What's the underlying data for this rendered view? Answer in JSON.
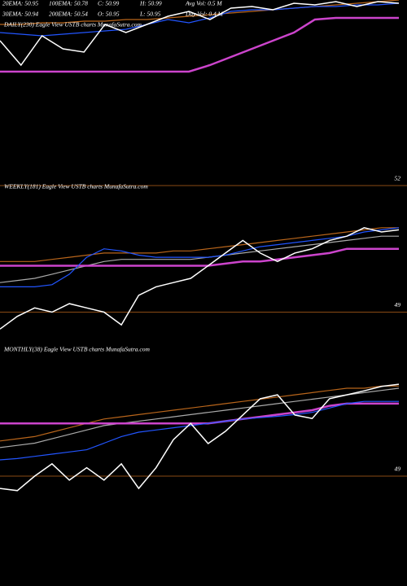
{
  "chart_data": [
    {
      "type": "line",
      "title": "DAILY(230) Eagle  View  USTB charts MunafaSutra.com",
      "annotations": [
        "20EMA: 50.95",
        "100EMA: 50.78",
        "C: 50.99",
        "H: 50.99",
        "Avg Vol: 0.5 M",
        "30EMA: 50.94",
        "200EMA: 50.54",
        "O: 50.95",
        "L: 50.95",
        "Day Vol: 0.4 M"
      ],
      "ylim": [
        50.55,
        51.05
      ],
      "yticks": [],
      "series": [
        {
          "color": "#b8651b",
          "values": [
            50.9,
            50.9,
            50.91,
            50.91,
            50.92,
            50.92,
            50.93,
            50.93,
            50.94,
            50.95,
            50.96,
            50.97,
            50.98,
            50.99,
            51.0,
            51.01,
            51.02,
            51.03,
            51.04,
            51.05
          ]
        },
        {
          "color": "#cc44cc",
          "values": [
            50.61,
            50.61,
            50.61,
            50.61,
            50.61,
            50.61,
            50.61,
            50.61,
            50.61,
            50.61,
            50.65,
            50.7,
            50.75,
            50.8,
            50.85,
            50.93,
            50.94,
            50.94,
            50.94,
            50.94
          ]
        },
        {
          "color": "#2255ff",
          "values": [
            50.85,
            50.84,
            50.83,
            50.84,
            50.85,
            50.86,
            50.87,
            50.9,
            50.93,
            50.91,
            50.94,
            50.98,
            50.99,
            50.99,
            51.0,
            51.01,
            51.01,
            51.02,
            51.02,
            51.03
          ]
        },
        {
          "color": "#ffffff",
          "values": [
            50.8,
            50.65,
            50.83,
            50.75,
            50.73,
            50.9,
            50.85,
            50.9,
            50.95,
            50.98,
            50.93,
            51.0,
            51.01,
            50.99,
            51.03,
            51.02,
            51.04,
            51.01,
            51.04,
            51.03
          ]
        }
      ]
    },
    {
      "type": "line",
      "title": "WEEKLY(181) Eagle  View  USTB charts MunafaSutra.com",
      "ylim": [
        48.2,
        52.25
      ],
      "yticks": [
        49,
        52
      ],
      "series": [
        {
          "color": "#b8651b",
          "values": [
            50.2,
            50.2,
            50.2,
            50.25,
            50.3,
            50.35,
            50.4,
            50.4,
            50.4,
            50.4,
            50.45,
            50.45,
            50.5,
            50.55,
            50.6,
            50.65,
            50.7,
            50.75,
            50.8,
            50.85,
            50.9,
            50.95,
            51.0,
            51.0
          ]
        },
        {
          "color": "#aaaaaa",
          "values": [
            49.7,
            49.75,
            49.8,
            49.9,
            50.0,
            50.1,
            50.2,
            50.25,
            50.25,
            50.25,
            50.25,
            50.25,
            50.3,
            50.35,
            50.4,
            50.45,
            50.5,
            50.55,
            50.6,
            50.65,
            50.7,
            50.75,
            50.8,
            50.8
          ]
        },
        {
          "color": "#cc44cc",
          "values": [
            50.1,
            50.1,
            50.1,
            50.1,
            50.1,
            50.1,
            50.1,
            50.1,
            50.1,
            50.1,
            50.1,
            50.1,
            50.1,
            50.15,
            50.2,
            50.2,
            50.25,
            50.3,
            50.35,
            50.4,
            50.5,
            50.5,
            50.5,
            50.5
          ]
        },
        {
          "color": "#2255ff",
          "values": [
            49.6,
            49.6,
            49.6,
            49.65,
            49.9,
            50.3,
            50.5,
            50.45,
            50.35,
            50.3,
            50.3,
            50.3,
            50.3,
            50.35,
            50.45,
            50.55,
            50.6,
            50.65,
            50.7,
            50.75,
            50.8,
            50.9,
            50.95,
            51.0
          ]
        },
        {
          "color": "#ffffff",
          "values": [
            48.6,
            48.9,
            49.1,
            49.0,
            49.2,
            49.1,
            49.0,
            48.7,
            49.4,
            49.6,
            49.7,
            49.8,
            50.1,
            50.4,
            50.7,
            50.4,
            50.2,
            50.4,
            50.5,
            50.7,
            50.8,
            51.0,
            50.9,
            50.95
          ]
        }
      ]
    },
    {
      "type": "line",
      "title": "MONTHLY(38) Eagle  View  USTB charts MunafaSutra.com",
      "ylim": [
        48.5,
        51.87
      ],
      "yticks": [
        49
      ],
      "series": [
        {
          "color": "#b8651b",
          "values": [
            49.8,
            49.85,
            49.9,
            50.0,
            50.1,
            50.2,
            50.3,
            50.35,
            50.4,
            50.45,
            50.5,
            50.55,
            50.6,
            50.65,
            50.7,
            50.75,
            50.8,
            50.85,
            50.9,
            50.95,
            51.0,
            51.0,
            51.05,
            51.05
          ]
        },
        {
          "color": "#aaaaaa",
          "values": [
            49.65,
            49.7,
            49.75,
            49.85,
            49.95,
            50.05,
            50.15,
            50.2,
            50.25,
            50.3,
            50.35,
            50.4,
            50.45,
            50.5,
            50.55,
            50.6,
            50.65,
            50.7,
            50.75,
            50.8,
            50.85,
            50.9,
            50.95,
            51.0
          ]
        },
        {
          "color": "#cc44cc",
          "values": [
            50.2,
            50.2,
            50.2,
            50.2,
            50.2,
            50.2,
            50.2,
            50.2,
            50.2,
            50.2,
            50.2,
            50.2,
            50.2,
            50.25,
            50.3,
            50.35,
            50.4,
            50.45,
            50.5,
            50.6,
            50.65,
            50.65,
            50.65,
            50.65
          ]
        },
        {
          "color": "#2255ff",
          "values": [
            49.37,
            49.4,
            49.45,
            49.5,
            49.55,
            49.6,
            49.75,
            49.9,
            50.0,
            50.05,
            50.1,
            50.15,
            50.2,
            50.25,
            50.3,
            50.33,
            50.36,
            50.4,
            50.45,
            50.55,
            50.65,
            50.7,
            50.7,
            50.7
          ]
        },
        {
          "color": "#ffffff",
          "values": [
            48.72,
            48.67,
            49.0,
            49.28,
            48.91,
            49.19,
            48.91,
            49.28,
            48.72,
            49.19,
            49.83,
            50.2,
            49.74,
            50.02,
            50.39,
            50.76,
            50.85,
            50.39,
            50.31,
            50.76,
            50.85,
            50.94,
            51.04,
            51.09
          ]
        }
      ]
    }
  ]
}
